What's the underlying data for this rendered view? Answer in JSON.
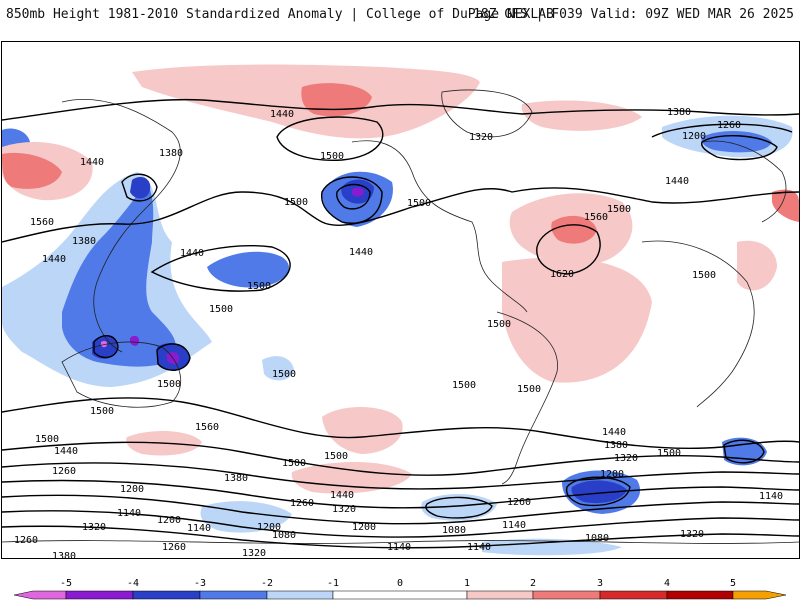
{
  "header": {
    "left_title": "850mb Height 1981-2010 Standardized Anomaly | College of DuPage NEXLAB",
    "right_title": "18Z GFS | F039 Valid: 09Z WED MAR 26 2025"
  },
  "colors": {
    "neg5": "#e066e0",
    "neg4": "#8a1bd0",
    "neg3": "#2a3fc8",
    "neg2": "#4f7ae8",
    "neg1": "#bcd6f7",
    "zero": "#ffffff",
    "pos1": "#f7c8c8",
    "pos2": "#ee7a7a",
    "pos3": "#d62a2a",
    "pos4": "#b00000",
    "pos5": "#f5a000",
    "contour": "#000000",
    "coastline": "#222222"
  },
  "map": {
    "contour_labels": [
      "1440",
      "1380",
      "1260",
      "1200",
      "1320",
      "1440",
      "1500",
      "1380",
      "1440",
      "1500",
      "1560",
      "1380",
      "1440",
      "1440",
      "1500",
      "1440",
      "1500",
      "1500",
      "1500",
      "1560",
      "1620",
      "1500",
      "1500",
      "1500",
      "1500",
      "1500",
      "1500",
      "1500",
      "1560",
      "1500",
      "1500",
      "1440",
      "1380",
      "1320",
      "1500",
      "1500",
      "1440",
      "1380",
      "1260",
      "1200",
      "1440",
      "1320",
      "1260",
      "1200",
      "1140",
      "1200",
      "1140",
      "1080",
      "1260",
      "1140",
      "1080",
      "1140",
      "1080",
      "1140",
      "1320",
      "1260",
      "1380",
      "1320",
      "1200",
      "1140",
      "1260",
      "1320",
      "1200",
      "1140",
      "1260",
      "1200",
      "1260",
      "1320",
      "1200"
    ]
  },
  "colorbar": {
    "ticks": [
      "-5",
      "-4",
      "-3",
      "-2",
      "-1",
      "0",
      "1",
      "2",
      "3",
      "4",
      "5"
    ]
  }
}
